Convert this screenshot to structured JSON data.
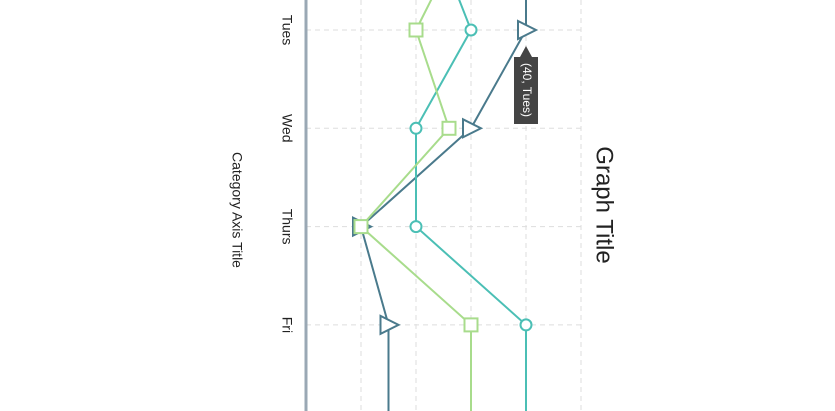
{
  "chart_data": {
    "type": "line",
    "title": "Graph Title",
    "category_axis_title": "Category Axis Title",
    "categories": [
      null,
      "Tues",
      "Wed",
      "Thurs",
      "Fri",
      null
    ],
    "series": [
      {
        "color": "#4a7a8c",
        "marker": "triangle",
        "values": [
          40,
          40,
          30,
          10,
          15,
          15
        ]
      },
      {
        "color": "#4bbfb5",
        "marker": "circle",
        "values": [
          23,
          30,
          20,
          20,
          40,
          40
        ]
      },
      {
        "color": "#a8dc8c",
        "marker": "square",
        "values": [
          29,
          20,
          26,
          10,
          30,
          30
        ]
      }
    ],
    "ylim": [
      0,
      50
    ],
    "yticks": [
      0,
      10,
      20,
      30,
      40,
      50
    ],
    "grid": true,
    "tooltip": "(40, Tues)"
  }
}
